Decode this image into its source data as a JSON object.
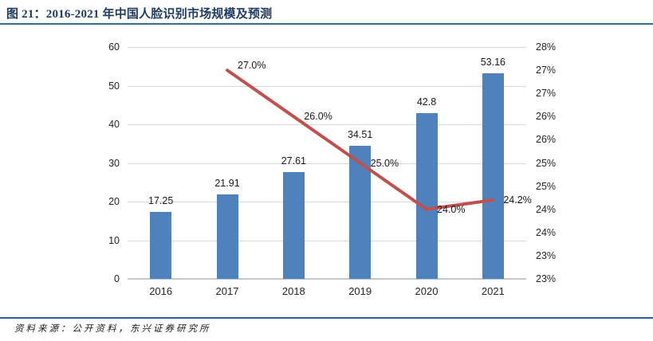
{
  "header": {
    "title": "图 21：2016-2021 年中国人脸识别市场规模及预测"
  },
  "footer": {
    "source": "资料来源：公开资料，东兴证券研究所"
  },
  "colors": {
    "bar": "#4f81bd",
    "line": "#c0504d",
    "title_text": "#1f3b63",
    "title_rule": "#3c6c99",
    "footer_rule": "#2e6095",
    "grid": "#d9d9d9",
    "axis_line": "#c6c6c6",
    "chart_text": "#262626"
  },
  "chart_data": {
    "type": "bar",
    "subtype": "bar-line-combo",
    "title": "图 21：2016-2021 年中国人脸识别市场规模及预测",
    "categories": [
      "2016",
      "2017",
      "2018",
      "2019",
      "2020",
      "2021"
    ],
    "series": [
      {
        "name": "bars",
        "type": "bar",
        "axis": "left",
        "color": "#4f81bd",
        "values": [
          17.25,
          21.91,
          27.61,
          34.51,
          42.8,
          53.16
        ],
        "data_labels": [
          "17.25",
          "21.91",
          "27.61",
          "34.51",
          "42.8",
          "53.16"
        ]
      },
      {
        "name": "line",
        "type": "line",
        "axis": "right",
        "color": "#c0504d",
        "categories": [
          "2017",
          "2018",
          "2019",
          "2020",
          "2021"
        ],
        "values": [
          27.0,
          26.0,
          25.0,
          24.0,
          24.2
        ],
        "data_labels": [
          "27.0%",
          "26.0%",
          "25.0%",
          "24.0%",
          "24.2%"
        ]
      }
    ],
    "left_axis": {
      "min": 0,
      "max": 60,
      "tick_labels_bottom_to_top": [
        "0",
        "10",
        "20",
        "30",
        "40",
        "50",
        "60"
      ]
    },
    "right_axis": {
      "plot_min": 22.5,
      "plot_max": 27.5,
      "tick_labels_top_to_bottom": [
        "28%",
        "27%",
        "27%",
        "26%",
        "26%",
        "25%",
        "25%",
        "24%",
        "24%",
        "23%",
        "23%"
      ]
    },
    "grid": "horizontal-only",
    "legend": "none",
    "xlabel": "",
    "ylabel": ""
  }
}
